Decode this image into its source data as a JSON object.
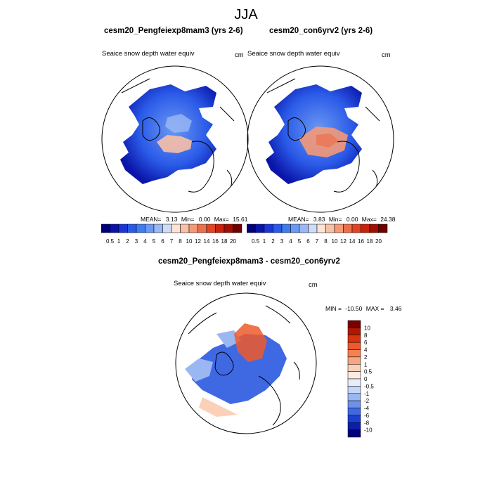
{
  "figure_title": "JJA",
  "panels": [
    {
      "title": "cesm20_Pengfeiexp8mam3 (yrs 2-6)",
      "variable": "Seaice snow depth water equiv",
      "units": "cm",
      "stats": {
        "mean": "3.13",
        "min": "0.00",
        "max": "15.61"
      }
    },
    {
      "title": "cesm20_con6yrv2 (yrs 2-6)",
      "variable": "Seaice snow depth water equiv",
      "units": "cm",
      "stats": {
        "mean": "3.83",
        "min": "0.00",
        "max": "24.38"
      }
    },
    {
      "title": "cesm20_Pengfeiexp8mam3 - cesm20_con6yrv2",
      "variable": "Seaice snow depth water equiv",
      "units": "cm",
      "stats": {
        "min": "-10.50",
        "max": "3.46"
      }
    }
  ],
  "labels": {
    "mean_label": "MEAN=",
    "min_label": "Min=",
    "max_label": "Max=",
    "diff_min_label": "MIN =",
    "diff_max_label": "MAX ="
  },
  "colorbar_abs": {
    "levels": [
      "0.5",
      "1",
      "2",
      "3",
      "4",
      "5",
      "6",
      "7",
      "8",
      "10",
      "12",
      "14",
      "16",
      "18",
      "20"
    ],
    "colors": [
      "#00007a",
      "#0a14a8",
      "#1a36d8",
      "#2a5ae8",
      "#3f7cf0",
      "#6a98f2",
      "#9bb8f4",
      "#cfdcf7",
      "#fde3d3",
      "#f8c0a6",
      "#f49978",
      "#ec6f4c",
      "#e04423",
      "#c8210c",
      "#a00f02",
      "#6e0000"
    ]
  },
  "colorbar_diff": {
    "levels": [
      "10",
      "8",
      "6",
      "4",
      "2",
      "1",
      "0.5",
      "0",
      "-0.5",
      "-1",
      "-2",
      "-4",
      "-6",
      "-8",
      "-10"
    ],
    "colors": [
      "#7a0000",
      "#b01800",
      "#d83410",
      "#ee5a2c",
      "#f58050",
      "#f7a582",
      "#fbd0b8",
      "#fdebe0",
      "#e6eefb",
      "#c5d6f6",
      "#9bb7f1",
      "#6d92ec",
      "#3f69e3",
      "#1c3fd0",
      "#0a1fa8",
      "#00007a"
    ]
  }
}
